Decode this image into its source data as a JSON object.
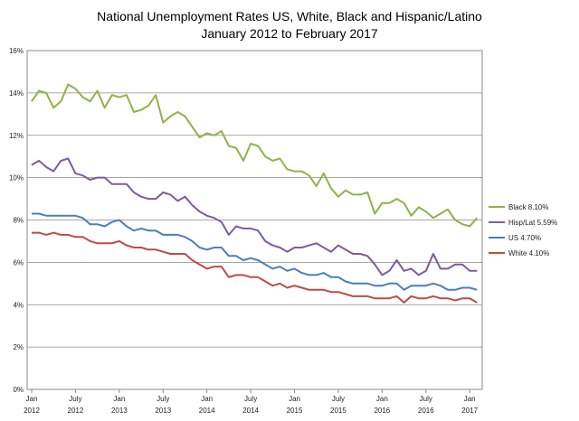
{
  "chart_data": {
    "type": "line",
    "title": "National Unemployment Rates US, White, Black and Hispanic/Latino",
    "subtitle": "January 2012 to February 2017",
    "ylim": [
      0,
      16
    ],
    "yticks": [
      "0%",
      "2%",
      "4%",
      "6%",
      "8%",
      "10%",
      "12%",
      "14%",
      "16%"
    ],
    "xticks": [
      {
        "month": "Jan",
        "year": "2012"
      },
      {
        "month": "July",
        "year": "2012"
      },
      {
        "month": "Jan",
        "year": "2013"
      },
      {
        "month": "July",
        "year": "2013"
      },
      {
        "month": "Jan",
        "year": "2014"
      },
      {
        "month": "July",
        "year": "2014"
      },
      {
        "month": "Jan",
        "year": "2015"
      },
      {
        "month": "July",
        "year": "2015"
      },
      {
        "month": "Jan",
        "year": "2016"
      },
      {
        "month": "July",
        "year": "2016"
      },
      {
        "month": "Jan",
        "year": "2017"
      }
    ],
    "x_start": "2012-01",
    "x_end": "2017-02",
    "grid": "horizontal",
    "legend_position": "right",
    "series": [
      {
        "name": "Black 8.10%",
        "color": "#8db447",
        "values": [
          13.6,
          14.1,
          14.0,
          13.3,
          13.6,
          14.4,
          14.2,
          13.8,
          13.6,
          14.1,
          13.3,
          13.9,
          13.8,
          13.9,
          13.1,
          13.2,
          13.4,
          13.9,
          12.6,
          12.9,
          13.1,
          12.9,
          12.4,
          11.9,
          12.1,
          12.0,
          12.2,
          11.5,
          11.4,
          10.8,
          11.6,
          11.5,
          11.0,
          10.8,
          10.9,
          10.4,
          10.3,
          10.3,
          10.1,
          9.6,
          10.2,
          9.5,
          9.1,
          9.4,
          9.2,
          9.2,
          9.3,
          8.3,
          8.8,
          8.8,
          9.0,
          8.8,
          8.2,
          8.6,
          8.4,
          8.1,
          8.3,
          8.5,
          8.0,
          7.8,
          7.7,
          8.1
        ]
      },
      {
        "name": "Hisp/Lat 5.59%",
        "color": "#7e5aa2",
        "values": [
          10.6,
          10.8,
          10.5,
          10.3,
          10.8,
          10.9,
          10.2,
          10.1,
          9.9,
          10.0,
          10.0,
          9.7,
          9.7,
          9.7,
          9.3,
          9.1,
          9.0,
          9.0,
          9.3,
          9.2,
          8.9,
          9.1,
          8.7,
          8.4,
          8.2,
          8.1,
          7.9,
          7.3,
          7.7,
          7.6,
          7.6,
          7.5,
          7.0,
          6.8,
          6.7,
          6.5,
          6.7,
          6.7,
          6.8,
          6.9,
          6.7,
          6.5,
          6.8,
          6.6,
          6.4,
          6.4,
          6.3,
          5.9,
          5.4,
          5.6,
          6.1,
          5.6,
          5.7,
          5.4,
          5.6,
          6.4,
          5.7,
          5.7,
          5.9,
          5.9,
          5.6,
          5.6
        ]
      },
      {
        "name": "US 4.70%",
        "color": "#4a7ebb",
        "values": [
          8.3,
          8.3,
          8.2,
          8.2,
          8.2,
          8.2,
          8.2,
          8.1,
          7.8,
          7.8,
          7.7,
          7.9,
          8.0,
          7.7,
          7.5,
          7.6,
          7.5,
          7.5,
          7.3,
          7.3,
          7.3,
          7.2,
          7.0,
          6.7,
          6.6,
          6.7,
          6.7,
          6.3,
          6.3,
          6.1,
          6.2,
          6.1,
          5.9,
          5.7,
          5.8,
          5.6,
          5.7,
          5.5,
          5.4,
          5.4,
          5.5,
          5.3,
          5.3,
          5.1,
          5.0,
          5.0,
          5.0,
          4.9,
          4.9,
          5.0,
          5.0,
          4.7,
          4.9,
          4.9,
          4.9,
          5.0,
          4.9,
          4.7,
          4.7,
          4.8,
          4.8,
          4.7
        ]
      },
      {
        "name": "White 4.10%",
        "color": "#be4b48",
        "values": [
          7.4,
          7.4,
          7.3,
          7.4,
          7.3,
          7.3,
          7.2,
          7.2,
          7.0,
          6.9,
          6.9,
          6.9,
          7.0,
          6.8,
          6.7,
          6.7,
          6.6,
          6.6,
          6.5,
          6.4,
          6.4,
          6.4,
          6.1,
          5.9,
          5.7,
          5.8,
          5.8,
          5.3,
          5.4,
          5.4,
          5.3,
          5.3,
          5.1,
          4.9,
          5.0,
          4.8,
          4.9,
          4.8,
          4.7,
          4.7,
          4.7,
          4.6,
          4.6,
          4.5,
          4.4,
          4.4,
          4.4,
          4.3,
          4.3,
          4.3,
          4.4,
          4.1,
          4.4,
          4.3,
          4.3,
          4.4,
          4.3,
          4.3,
          4.2,
          4.3,
          4.3,
          4.1
        ]
      }
    ]
  }
}
